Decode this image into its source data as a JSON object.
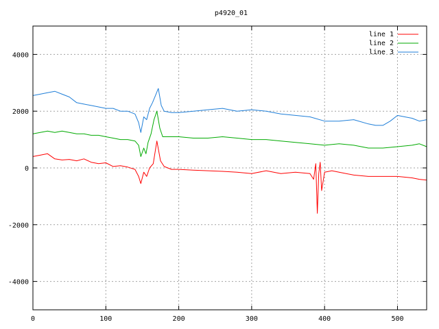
{
  "chart_data": {
    "type": "line",
    "title": "p4920_01",
    "xlabel": "",
    "ylabel": "",
    "xlim": [
      0,
      540
    ],
    "ylim": [
      -5000,
      5000
    ],
    "xticks": [
      0,
      100,
      200,
      300,
      400,
      500
    ],
    "yticks": [
      -4000,
      -2000,
      0,
      2000,
      4000
    ],
    "grid": true,
    "legend_position": "top-right",
    "series": [
      {
        "name": "line 1",
        "color": "#ff0000",
        "x": [
          0,
          10,
          20,
          30,
          40,
          50,
          60,
          70,
          80,
          90,
          100,
          110,
          120,
          130,
          140,
          145,
          148,
          152,
          156,
          160,
          165,
          170,
          175,
          180,
          190,
          200,
          220,
          240,
          260,
          280,
          300,
          320,
          340,
          360,
          380,
          385,
          388,
          390,
          392,
          394,
          396,
          400,
          410,
          420,
          440,
          460,
          480,
          500,
          520,
          530,
          540
        ],
        "y": [
          400,
          450,
          500,
          320,
          280,
          300,
          250,
          320,
          200,
          150,
          180,
          50,
          80,
          30,
          -50,
          -300,
          -550,
          -150,
          -300,
          0,
          150,
          950,
          250,
          50,
          -50,
          -50,
          -80,
          -100,
          -120,
          -150,
          -200,
          -100,
          -200,
          -150,
          -200,
          -400,
          150,
          -1600,
          -200,
          200,
          -800,
          -150,
          -100,
          -150,
          -250,
          -300,
          -300,
          -300,
          -350,
          -400,
          -430
        ]
      },
      {
        "name": "line 2",
        "color": "#00aa00",
        "x": [
          0,
          10,
          20,
          30,
          40,
          50,
          60,
          70,
          80,
          90,
          100,
          110,
          120,
          130,
          140,
          145,
          148,
          152,
          155,
          158,
          162,
          166,
          170,
          174,
          178,
          185,
          200,
          220,
          240,
          260,
          280,
          300,
          320,
          340,
          360,
          380,
          400,
          420,
          440,
          460,
          480,
          500,
          520,
          530,
          540
        ],
        "y": [
          1200,
          1250,
          1300,
          1250,
          1300,
          1250,
          1200,
          1200,
          1150,
          1150,
          1100,
          1050,
          1000,
          1000,
          950,
          800,
          400,
          700,
          500,
          900,
          1200,
          1700,
          2000,
          1400,
          1100,
          1100,
          1100,
          1050,
          1050,
          1100,
          1050,
          1000,
          1000,
          950,
          900,
          850,
          800,
          850,
          800,
          700,
          700,
          750,
          800,
          850,
          750
        ]
      },
      {
        "name": "line 3",
        "color": "#1e7ed8",
        "x": [
          0,
          10,
          20,
          30,
          40,
          50,
          60,
          70,
          80,
          90,
          100,
          110,
          120,
          130,
          140,
          145,
          148,
          152,
          156,
          160,
          164,
          168,
          172,
          176,
          180,
          190,
          200,
          220,
          240,
          260,
          280,
          300,
          320,
          340,
          360,
          380,
          400,
          420,
          440,
          460,
          470,
          480,
          490,
          500,
          510,
          520,
          530,
          540
        ],
        "y": [
          2550,
          2600,
          2650,
          2700,
          2600,
          2500,
          2300,
          2250,
          2200,
          2150,
          2100,
          2100,
          2000,
          2000,
          1900,
          1600,
          1250,
          1800,
          1700,
          2100,
          2300,
          2550,
          2800,
          2200,
          2000,
          1950,
          1950,
          2000,
          2050,
          2100,
          2000,
          2050,
          2000,
          1900,
          1850,
          1800,
          1650,
          1650,
          1700,
          1550,
          1500,
          1500,
          1650,
          1850,
          1800,
          1750,
          1650,
          1700
        ]
      }
    ]
  }
}
